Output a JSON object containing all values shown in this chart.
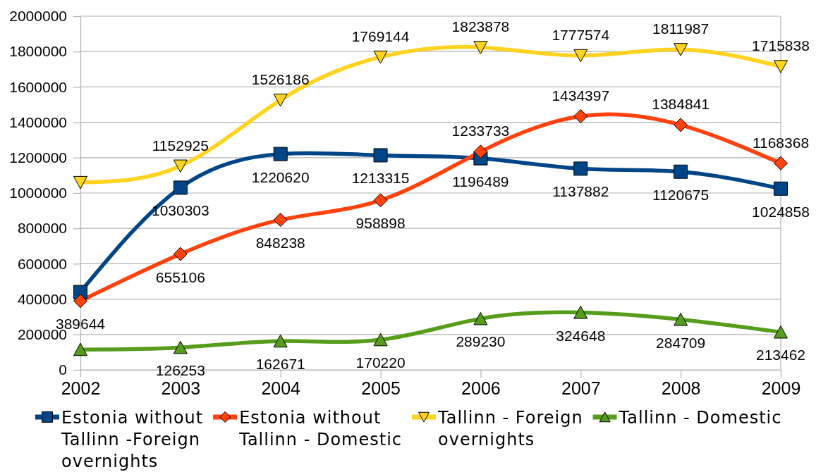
{
  "chart_data": {
    "type": "line",
    "categories": [
      "2002",
      "2003",
      "2004",
      "2005",
      "2006",
      "2007",
      "2008",
      "2009"
    ],
    "ylim": [
      0,
      2000000
    ],
    "yticks": [
      0,
      200000,
      400000,
      600000,
      800000,
      1000000,
      1200000,
      1400000,
      1600000,
      1800000,
      2000000
    ],
    "grid": "y",
    "legend": "bottom",
    "series": [
      {
        "name": "Estonia without Tallinn -Foreign overnights",
        "color": "#004586",
        "marker": "square",
        "values": [
          440000,
          1030303,
          1220620,
          1213315,
          1196489,
          1137882,
          1120675,
          1024858
        ],
        "value_labels": [
          null,
          "1030303",
          "1220620",
          "1213315",
          "1196489",
          "1137882",
          "1120675",
          "1024858"
        ]
      },
      {
        "name": "Estonia without Tallinn - Domestic",
        "color": "#ff420e",
        "marker": "diamond",
        "values": [
          389644,
          655106,
          848238,
          958898,
          1233733,
          1434397,
          1384841,
          1168368
        ],
        "value_labels": [
          "389644",
          "655106",
          "848238",
          "958898",
          "1233733",
          "1434397",
          "1384841",
          "1168368"
        ]
      },
      {
        "name": "Tallinn - Foreign overnights",
        "color": "#ffd320",
        "marker": "triangle-down",
        "values": [
          1060000,
          1152925,
          1526186,
          1769144,
          1823878,
          1777574,
          1811987,
          1715838
        ],
        "value_labels": [
          null,
          "1152925",
          "1526186",
          "1769144",
          "1823878",
          "1777574",
          "1811987",
          "1715838"
        ]
      },
      {
        "name": "Tallinn - Domestic",
        "color": "#579d1c",
        "marker": "triangle",
        "values": [
          115000,
          126253,
          162671,
          170220,
          289230,
          324648,
          284709,
          213462
        ],
        "value_labels": [
          null,
          "126253",
          "162671",
          "170220",
          "289230",
          "324648",
          "284709",
          "213462"
        ]
      }
    ]
  }
}
